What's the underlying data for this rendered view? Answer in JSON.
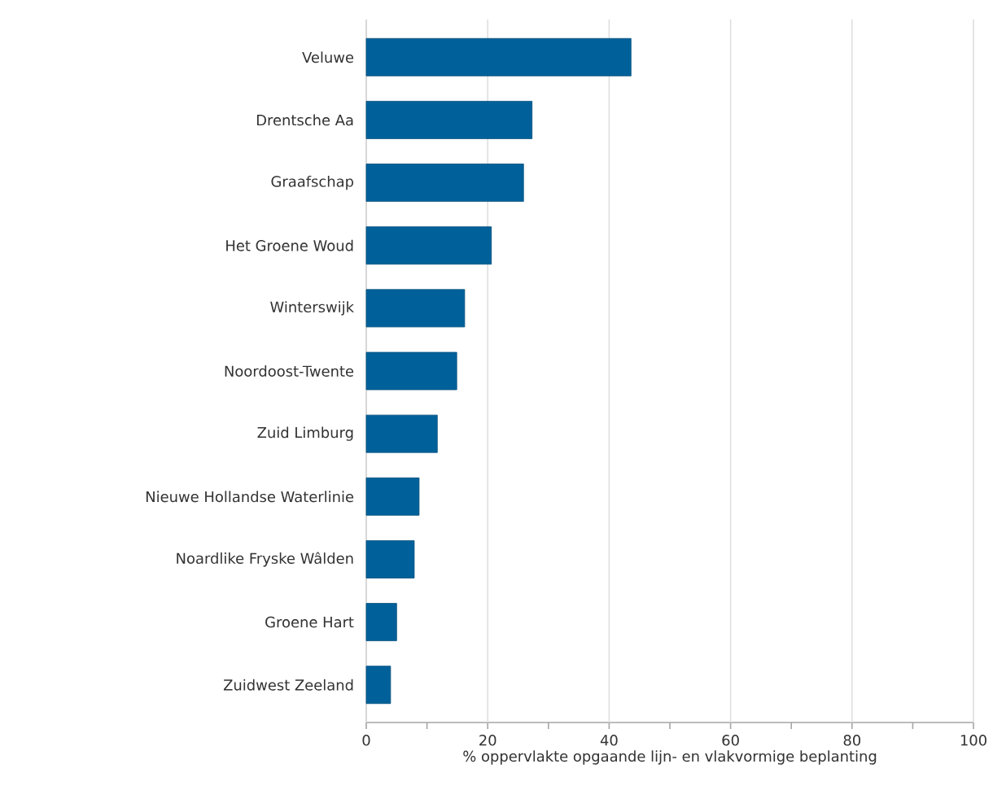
{
  "chart_data": {
    "type": "bar",
    "orientation": "horizontal",
    "xlabel": "% oppervlakte opgaande lijn- en vlakvormige beplanting",
    "categories": [
      "Veluwe",
      "Drentsche Aa",
      "Graafschap",
      "Het Groene Woud",
      "Winterswijk",
      "Noordoost-Twente",
      "Zuid Limburg",
      "Nieuwe Hollandse Waterlinie",
      "Noardlike Fryske Wâlden",
      "Groene Hart",
      "Zuidwest Zeeland"
    ],
    "values": [
      43.6,
      27.3,
      25.9,
      20.6,
      16.2,
      14.9,
      11.7,
      8.7,
      7.9,
      5.0,
      4.0
    ],
    "color": "#00619a",
    "xlim": [
      0,
      100
    ],
    "xticks": [
      0,
      {
        "value": 10,
        "label": null
      },
      20,
      {
        "value": 30,
        "label": null
      },
      40,
      {
        "value": 50,
        "label": null
      },
      60,
      {
        "value": 70,
        "label": null
      },
      80,
      {
        "value": 90,
        "label": null
      },
      100
    ],
    "grid": "x"
  }
}
